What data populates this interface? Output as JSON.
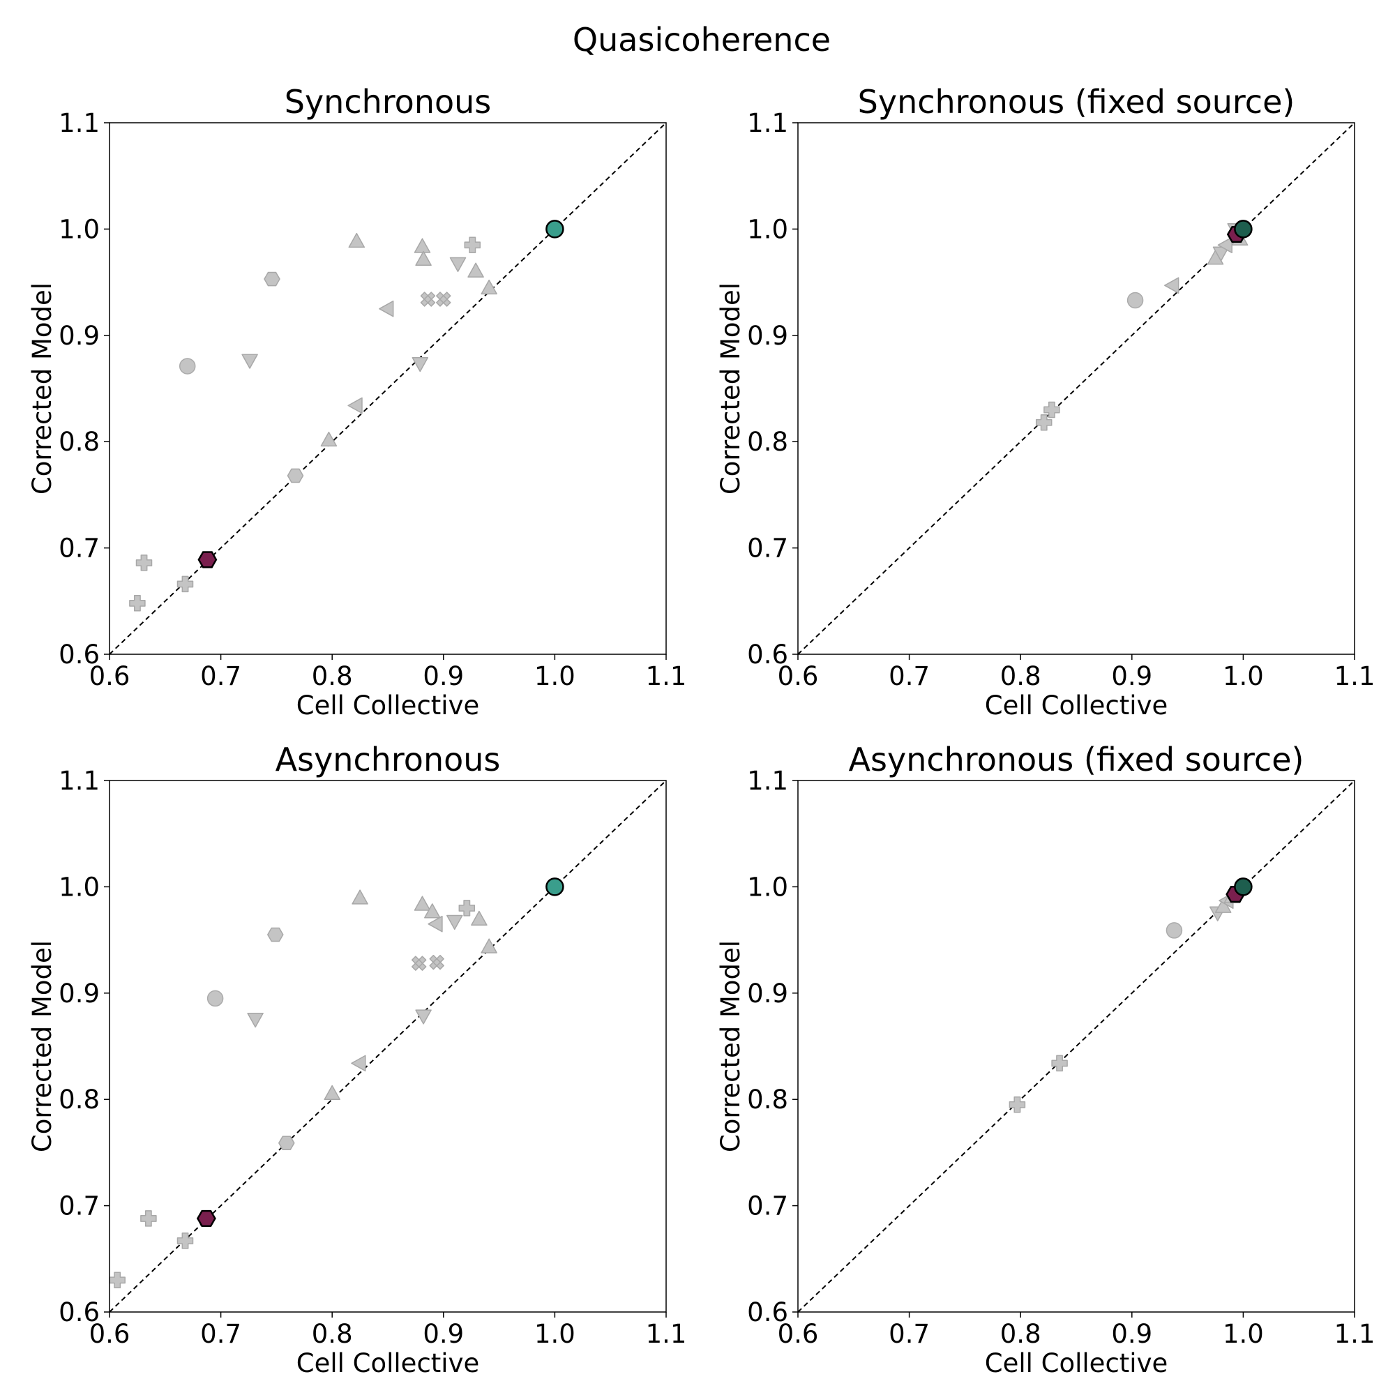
{
  "figure": {
    "suptitle": "Quasicoherence"
  },
  "chart_data": [
    {
      "type": "scatter",
      "title": "Synchronous",
      "xlabel": "Cell Collective",
      "ylabel": "Corrected Model",
      "xlim": [
        0.6,
        1.1
      ],
      "ylim": [
        0.6,
        1.1
      ],
      "xticks": [
        "0.6",
        "0.7",
        "0.8",
        "0.9",
        "1.0",
        "1.1"
      ],
      "yticks": [
        "0.6",
        "0.7",
        "0.8",
        "0.9",
        "1.0",
        "1.1"
      ],
      "grid": false,
      "diagonal": true,
      "points": [
        {
          "x": 0.67,
          "y": 0.871,
          "marker": "circle",
          "color": "#bbbbbb"
        },
        {
          "x": 0.746,
          "y": 0.953,
          "marker": "hexagon",
          "color": "#bbbbbb"
        },
        {
          "x": 0.767,
          "y": 0.768,
          "marker": "hexagon",
          "color": "#bbbbbb"
        },
        {
          "x": 0.822,
          "y": 0.988,
          "marker": "triangle-up",
          "color": "#bbbbbb"
        },
        {
          "x": 0.881,
          "y": 0.983,
          "marker": "triangle-up",
          "color": "#bbbbbb"
        },
        {
          "x": 0.882,
          "y": 0.971,
          "marker": "triangle-up",
          "color": "#bbbbbb"
        },
        {
          "x": 0.929,
          "y": 0.96,
          "marker": "triangle-up",
          "color": "#bbbbbb"
        },
        {
          "x": 0.941,
          "y": 0.944,
          "marker": "triangle-up",
          "color": "#bbbbbb"
        },
        {
          "x": 0.797,
          "y": 0.801,
          "marker": "triangle-up",
          "color": "#bbbbbb"
        },
        {
          "x": 0.726,
          "y": 0.877,
          "marker": "triangle-down",
          "color": "#bbbbbb"
        },
        {
          "x": 0.879,
          "y": 0.874,
          "marker": "triangle-down",
          "color": "#bbbbbb"
        },
        {
          "x": 0.913,
          "y": 0.968,
          "marker": "triangle-down",
          "color": "#bbbbbb"
        },
        {
          "x": 0.85,
          "y": 0.925,
          "marker": "triangle-left",
          "color": "#bbbbbb"
        },
        {
          "x": 0.822,
          "y": 0.834,
          "marker": "triangle-left",
          "color": "#bbbbbb"
        },
        {
          "x": 0.886,
          "y": 0.934,
          "marker": "x",
          "color": "#bbbbbb"
        },
        {
          "x": 0.9,
          "y": 0.934,
          "marker": "x",
          "color": "#bbbbbb"
        },
        {
          "x": 0.926,
          "y": 0.985,
          "marker": "plus",
          "color": "#bbbbbb"
        },
        {
          "x": 0.631,
          "y": 0.686,
          "marker": "plus",
          "color": "#bbbbbb"
        },
        {
          "x": 0.625,
          "y": 0.648,
          "marker": "plus",
          "color": "#bbbbbb"
        },
        {
          "x": 0.668,
          "y": 0.666,
          "marker": "plus",
          "color": "#bbbbbb"
        },
        {
          "x": 0.688,
          "y": 0.689,
          "marker": "hexagon",
          "color": "#7a1f4e",
          "highlight": true
        },
        {
          "x": 1.0,
          "y": 1.0,
          "marker": "circle",
          "color": "#3a9e8c",
          "highlight": true
        }
      ]
    },
    {
      "type": "scatter",
      "title": "Synchronous (fixed source)",
      "xlabel": "Cell Collective",
      "ylabel": "Corrected Model",
      "xlim": [
        0.6,
        1.1
      ],
      "ylim": [
        0.6,
        1.1
      ],
      "xticks": [
        "0.6",
        "0.7",
        "0.8",
        "0.9",
        "1.0",
        "1.1"
      ],
      "yticks": [
        "0.6",
        "0.7",
        "0.8",
        "0.9",
        "1.0",
        "1.1"
      ],
      "grid": false,
      "diagonal": true,
      "points": [
        {
          "x": 0.903,
          "y": 0.933,
          "marker": "circle",
          "color": "#bbbbbb"
        },
        {
          "x": 0.937,
          "y": 0.947,
          "marker": "triangle-left",
          "color": "#bbbbbb"
        },
        {
          "x": 0.821,
          "y": 0.818,
          "marker": "plus",
          "color": "#bbbbbb"
        },
        {
          "x": 0.828,
          "y": 0.83,
          "marker": "plus",
          "color": "#bbbbbb"
        },
        {
          "x": 0.975,
          "y": 0.972,
          "marker": "triangle-up",
          "color": "#bbbbbb"
        },
        {
          "x": 0.98,
          "y": 0.978,
          "marker": "triangle-down",
          "color": "#bbbbbb"
        },
        {
          "x": 0.985,
          "y": 0.985,
          "marker": "triangle-left",
          "color": "#bbbbbb"
        },
        {
          "x": 0.997,
          "y": 0.99,
          "marker": "triangle-up",
          "color": "#bbbbbb"
        },
        {
          "x": 0.993,
          "y": 1.0,
          "marker": "triangle-down",
          "color": "#bbbbbb"
        },
        {
          "x": 0.994,
          "y": 0.995,
          "marker": "hexagon",
          "color": "#7a1f4e",
          "highlight": true
        },
        {
          "x": 1.0,
          "y": 1.0,
          "marker": "circle",
          "color": "#1e5e4e",
          "highlight": true
        }
      ]
    },
    {
      "type": "scatter",
      "title": "Asynchronous",
      "xlabel": "Cell Collective",
      "ylabel": "Corrected Model",
      "xlim": [
        0.6,
        1.1
      ],
      "ylim": [
        0.6,
        1.1
      ],
      "xticks": [
        "0.6",
        "0.7",
        "0.8",
        "0.9",
        "1.0",
        "1.1"
      ],
      "yticks": [
        "0.6",
        "0.7",
        "0.8",
        "0.9",
        "1.0",
        "1.1"
      ],
      "grid": false,
      "diagonal": true,
      "points": [
        {
          "x": 0.695,
          "y": 0.895,
          "marker": "circle",
          "color": "#bbbbbb"
        },
        {
          "x": 0.749,
          "y": 0.955,
          "marker": "hexagon",
          "color": "#bbbbbb"
        },
        {
          "x": 0.759,
          "y": 0.759,
          "marker": "hexagon",
          "color": "#bbbbbb"
        },
        {
          "x": 0.825,
          "y": 0.989,
          "marker": "triangle-up",
          "color": "#bbbbbb"
        },
        {
          "x": 0.881,
          "y": 0.983,
          "marker": "triangle-up",
          "color": "#bbbbbb"
        },
        {
          "x": 0.89,
          "y": 0.976,
          "marker": "triangle-up",
          "color": "#bbbbbb"
        },
        {
          "x": 0.932,
          "y": 0.969,
          "marker": "triangle-up",
          "color": "#bbbbbb"
        },
        {
          "x": 0.941,
          "y": 0.943,
          "marker": "triangle-up",
          "color": "#bbbbbb"
        },
        {
          "x": 0.8,
          "y": 0.805,
          "marker": "triangle-up",
          "color": "#bbbbbb"
        },
        {
          "x": 0.731,
          "y": 0.876,
          "marker": "triangle-down",
          "color": "#bbbbbb"
        },
        {
          "x": 0.882,
          "y": 0.879,
          "marker": "triangle-down",
          "color": "#bbbbbb"
        },
        {
          "x": 0.91,
          "y": 0.968,
          "marker": "triangle-down",
          "color": "#bbbbbb"
        },
        {
          "x": 0.894,
          "y": 0.965,
          "marker": "triangle-left",
          "color": "#bbbbbb"
        },
        {
          "x": 0.825,
          "y": 0.834,
          "marker": "triangle-left",
          "color": "#bbbbbb"
        },
        {
          "x": 0.878,
          "y": 0.928,
          "marker": "x",
          "color": "#bbbbbb"
        },
        {
          "x": 0.894,
          "y": 0.929,
          "marker": "x",
          "color": "#bbbbbb"
        },
        {
          "x": 0.921,
          "y": 0.98,
          "marker": "plus",
          "color": "#bbbbbb"
        },
        {
          "x": 0.635,
          "y": 0.688,
          "marker": "plus",
          "color": "#bbbbbb"
        },
        {
          "x": 0.607,
          "y": 0.63,
          "marker": "plus",
          "color": "#bbbbbb"
        },
        {
          "x": 0.668,
          "y": 0.667,
          "marker": "plus",
          "color": "#bbbbbb"
        },
        {
          "x": 0.687,
          "y": 0.688,
          "marker": "hexagon",
          "color": "#7a1f4e",
          "highlight": true
        },
        {
          "x": 1.0,
          "y": 1.0,
          "marker": "circle",
          "color": "#3a9e8c",
          "highlight": true
        }
      ]
    },
    {
      "type": "scatter",
      "title": "Asynchronous (fixed source)",
      "xlabel": "Cell Collective",
      "ylabel": "Corrected Model",
      "xlim": [
        0.6,
        1.1
      ],
      "ylim": [
        0.6,
        1.1
      ],
      "xticks": [
        "0.6",
        "0.7",
        "0.8",
        "0.9",
        "1.0",
        "1.1"
      ],
      "yticks": [
        "0.6",
        "0.7",
        "0.8",
        "0.9",
        "1.0",
        "1.1"
      ],
      "grid": false,
      "diagonal": true,
      "points": [
        {
          "x": 0.938,
          "y": 0.959,
          "marker": "circle",
          "color": "#bbbbbb"
        },
        {
          "x": 0.797,
          "y": 0.795,
          "marker": "plus",
          "color": "#bbbbbb"
        },
        {
          "x": 0.835,
          "y": 0.834,
          "marker": "plus",
          "color": "#bbbbbb"
        },
        {
          "x": 0.977,
          "y": 0.976,
          "marker": "triangle-down",
          "color": "#bbbbbb"
        },
        {
          "x": 0.982,
          "y": 0.981,
          "marker": "triangle-up",
          "color": "#bbbbbb"
        },
        {
          "x": 0.986,
          "y": 0.987,
          "marker": "triangle-left",
          "color": "#bbbbbb"
        },
        {
          "x": 0.99,
          "y": 0.99,
          "marker": "triangle-up",
          "color": "#bbbbbb"
        },
        {
          "x": 0.993,
          "y": 0.993,
          "marker": "hexagon",
          "color": "#7a1f4e",
          "highlight": true
        },
        {
          "x": 1.0,
          "y": 1.0,
          "marker": "circle",
          "color": "#1e5e4e",
          "highlight": true
        }
      ]
    }
  ]
}
